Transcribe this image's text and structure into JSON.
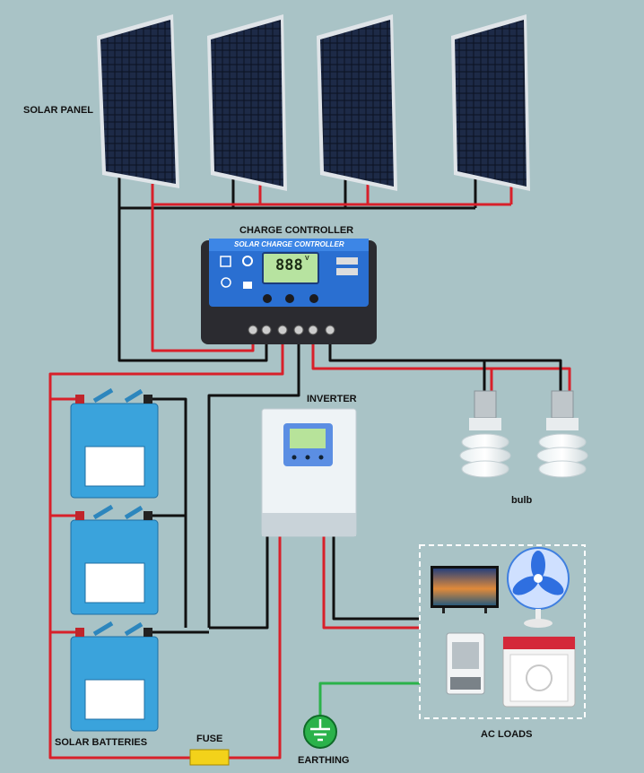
{
  "labels": {
    "solar_panel": "SOLAR PANEL",
    "charge_controller": "CHARGE CONTROLLER",
    "controller_brand": "SOLAR CHARGE CONTROLLER",
    "display_value": "888",
    "display_unit": "V",
    "inverter": "INVERTER",
    "bulb": "bulb",
    "ac_loads": "AC LOADS",
    "solar_batteries": "SOLAR BATTERIES",
    "fuse": "FUSE",
    "earthing": "EARTHING"
  },
  "colors": {
    "background": "#a9c3c6",
    "positive_wire": "#d8202a",
    "negative_wire": "#111111",
    "earth_wire": "#2bb24a",
    "battery": "#3aa3dc",
    "controller": "#2a6fd1",
    "fuse": "#f3d21a"
  },
  "icons": [
    "solar-panel-icon",
    "battery-icon",
    "bulb-icon",
    "tv-icon",
    "fan-icon",
    "air-cooler-icon",
    "washing-machine-icon",
    "earth-ground-icon"
  ]
}
